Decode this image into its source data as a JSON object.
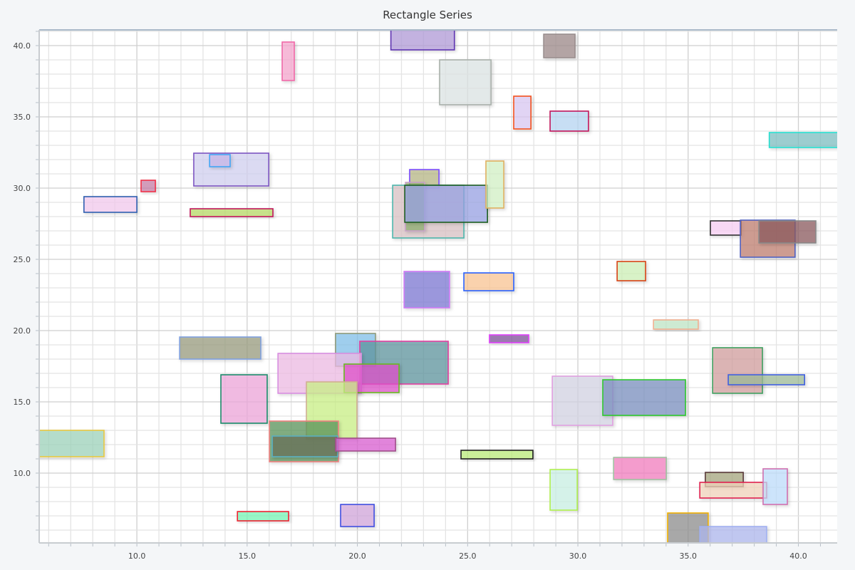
{
  "chart_data": {
    "type": "rectangle",
    "title": "Rectangle Series",
    "xlabel": "",
    "ylabel": "",
    "xlim": [
      5.57,
      41.76
    ],
    "ylim": [
      5.1,
      41.1
    ],
    "grid": true,
    "x_ticks": [
      "10.0",
      "15.0",
      "20.0",
      "25.0",
      "30.0",
      "35.0",
      "40.0"
    ],
    "y_ticks": [
      "10.0",
      "15.0",
      "20.0",
      "25.0",
      "30.0",
      "35.0",
      "40.0"
    ],
    "rectangles": [
      {
        "x1": 21.52,
        "x2": 24.4,
        "y1": 39.7,
        "y2": 41.3,
        "fill": "#b39ddb",
        "stroke": "#5e35b1"
      },
      {
        "x1": 16.59,
        "x2": 17.14,
        "y1": 37.55,
        "y2": 40.25,
        "fill": "#f8a8d0",
        "stroke": "#f06aa8"
      },
      {
        "x1": 23.73,
        "x2": 26.06,
        "y1": 35.85,
        "y2": 39.0,
        "fill": "#dfe6e6",
        "stroke": "#a8b0aa"
      },
      {
        "x1": 28.45,
        "x2": 29.87,
        "y1": 39.15,
        "y2": 40.8,
        "fill": "#9e8a8a",
        "stroke": "#9a8e8e"
      },
      {
        "x1": 27.09,
        "x2": 27.87,
        "y1": 34.15,
        "y2": 36.45,
        "fill": "#dccaf5",
        "stroke": "#f4511e"
      },
      {
        "x1": 28.74,
        "x2": 30.48,
        "y1": 34.0,
        "y2": 35.4,
        "fill": "#b8d8f5",
        "stroke": "#c2185b"
      },
      {
        "x1": 38.68,
        "x2": 42.0,
        "y1": 32.85,
        "y2": 33.9,
        "fill": "#80c0c4",
        "stroke": "#26e0d0"
      },
      {
        "x1": 12.58,
        "x2": 15.98,
        "y1": 30.15,
        "y2": 32.45,
        "fill": "#d4d2f2",
        "stroke": "#7e57c2"
      },
      {
        "x1": 13.3,
        "x2": 14.23,
        "y1": 31.5,
        "y2": 32.35,
        "fill": "#cab8ea",
        "stroke": "#42a5f5"
      },
      {
        "x1": 10.19,
        "x2": 10.84,
        "y1": 29.75,
        "y2": 30.55,
        "fill": "#c880a8",
        "stroke": "#f0304a"
      },
      {
        "x1": 7.6,
        "x2": 10.0,
        "y1": 28.3,
        "y2": 29.4,
        "fill": "#f5ccf0",
        "stroke": "#2f5fb0"
      },
      {
        "x1": 12.42,
        "x2": 16.17,
        "y1": 28.0,
        "y2": 28.55,
        "fill": "#b8dc68",
        "stroke": "#c2185b"
      },
      {
        "x1": 22.37,
        "x2": 23.7,
        "y1": 30.0,
        "y2": 31.3,
        "fill": "#b8b888",
        "stroke": "#7c4dff"
      },
      {
        "x1": 21.6,
        "x2": 24.83,
        "y1": 26.5,
        "y2": 30.2,
        "fill": "#dcc4c6",
        "stroke": "#4db6ac"
      },
      {
        "x1": 22.18,
        "x2": 23.05,
        "y1": 27.0,
        "y2": 30.4,
        "fill": "#90b070",
        "stroke": "#c8a2c8"
      },
      {
        "x1": 22.15,
        "x2": 25.9,
        "y1": 27.6,
        "y2": 30.2,
        "fill": "#9aa4e6",
        "stroke": "#1b5e20"
      },
      {
        "x1": 25.83,
        "x2": 26.64,
        "y1": 28.6,
        "y2": 31.9,
        "fill": "#d6f4c8",
        "stroke": "#e0b060"
      },
      {
        "x1": 22.12,
        "x2": 24.18,
        "y1": 21.6,
        "y2": 24.15,
        "fill": "#7e79d5",
        "stroke": "#d07af5"
      },
      {
        "x1": 24.83,
        "x2": 27.09,
        "y1": 22.8,
        "y2": 24.05,
        "fill": "#fdc896",
        "stroke": "#2962ff"
      },
      {
        "x1": 31.78,
        "x2": 33.07,
        "y1": 23.5,
        "y2": 24.85,
        "fill": "#d0f2b8",
        "stroke": "#d84315"
      },
      {
        "x1": 36.01,
        "x2": 37.4,
        "y1": 26.7,
        "y2": 27.7,
        "fill": "#fbd0f5",
        "stroke": "#333333"
      },
      {
        "x1": 37.37,
        "x2": 39.85,
        "y1": 25.15,
        "y2": 27.75,
        "fill": "#c08070",
        "stroke": "#5060c0"
      },
      {
        "x1": 38.21,
        "x2": 40.79,
        "y1": 26.15,
        "y2": 27.7,
        "fill": "#8e5a60",
        "stroke": "#888888"
      },
      {
        "x1": 33.43,
        "x2": 35.46,
        "y1": 20.1,
        "y2": 20.75,
        "fill": "#c0e8c8",
        "stroke": "#f0b090"
      },
      {
        "x1": 25.99,
        "x2": 27.77,
        "y1": 19.15,
        "y2": 19.7,
        "fill": "#80509a",
        "stroke": "#e040fb"
      },
      {
        "x1": 11.94,
        "x2": 15.62,
        "y1": 18.0,
        "y2": 19.55,
        "fill": "#9a9c80",
        "stroke": "#7fa0e0"
      },
      {
        "x1": 19.01,
        "x2": 20.82,
        "y1": 17.5,
        "y2": 19.8,
        "fill": "#84c2ec",
        "stroke": "#8d9a7a"
      },
      {
        "x1": 20.11,
        "x2": 24.12,
        "y1": 16.25,
        "y2": 19.25,
        "fill": "#5e96a0",
        "stroke": "#e040a0"
      },
      {
        "x1": 16.4,
        "x2": 20.18,
        "y1": 15.6,
        "y2": 18.4,
        "fill": "#f0bce6",
        "stroke": "#d88ee0"
      },
      {
        "x1": 19.4,
        "x2": 21.89,
        "y1": 15.65,
        "y2": 17.65,
        "fill": "#e050cc",
        "stroke": "#6ab820"
      },
      {
        "x1": 13.81,
        "x2": 15.91,
        "y1": 13.5,
        "y2": 16.9,
        "fill": "#f0a8dc",
        "stroke": "#1a8a6a"
      },
      {
        "x1": 17.69,
        "x2": 19.98,
        "y1": 12.4,
        "y2": 16.4,
        "fill": "#ccf288",
        "stroke": "#d0b090"
      },
      {
        "x1": 16.01,
        "x2": 19.14,
        "y1": 10.8,
        "y2": 13.65,
        "fill": "#5a945a",
        "stroke": "#f08080"
      },
      {
        "x1": 16.14,
        "x2": 19.11,
        "y1": 11.15,
        "y2": 12.6,
        "fill": "#6a7058",
        "stroke": "#5ab0c0"
      },
      {
        "x1": 19.01,
        "x2": 21.73,
        "y1": 11.55,
        "y2": 12.45,
        "fill": "#dc60d4",
        "stroke": "#a0508a"
      },
      {
        "x1": 5.4,
        "x2": 8.51,
        "y1": 11.15,
        "y2": 13.0,
        "fill": "#a0d6bc",
        "stroke": "#e8c840"
      },
      {
        "x1": 24.7,
        "x2": 27.96,
        "y1": 11.0,
        "y2": 11.6,
        "fill": "#bcee7a",
        "stroke": "#222222"
      },
      {
        "x1": 28.84,
        "x2": 31.58,
        "y1": 13.35,
        "y2": 16.8,
        "fill": "#d6d6e4",
        "stroke": "#e0a0e0"
      },
      {
        "x1": 31.13,
        "x2": 34.88,
        "y1": 14.05,
        "y2": 16.55,
        "fill": "#7a92c0",
        "stroke": "#2ec82e"
      },
      {
        "x1": 36.11,
        "x2": 38.37,
        "y1": 15.6,
        "y2": 18.8,
        "fill": "#d4a0a0",
        "stroke": "#40a060"
      },
      {
        "x1": 36.82,
        "x2": 40.28,
        "y1": 16.2,
        "y2": 16.9,
        "fill": "#a0bc98",
        "stroke": "#4060e0"
      },
      {
        "x1": 31.62,
        "x2": 34.01,
        "y1": 9.55,
        "y2": 11.1,
        "fill": "#f580c0",
        "stroke": "#a0c0a0"
      },
      {
        "x1": 28.74,
        "x2": 29.97,
        "y1": 7.4,
        "y2": 10.25,
        "fill": "#ccf2e6",
        "stroke": "#b0f050"
      },
      {
        "x1": 35.78,
        "x2": 37.5,
        "y1": 9.05,
        "y2": 10.05,
        "fill": "#a8a880",
        "stroke": "#5a3a3a"
      },
      {
        "x1": 35.53,
        "x2": 38.56,
        "y1": 8.25,
        "y2": 9.35,
        "fill": "#f4d6bc",
        "stroke": "#e02050"
      },
      {
        "x1": 38.4,
        "x2": 39.5,
        "y1": 7.8,
        "y2": 10.3,
        "fill": "#c0e0ff",
        "stroke": "#d070b0"
      },
      {
        "x1": 34.07,
        "x2": 35.91,
        "y1": 5.0,
        "y2": 7.2,
        "fill": "#909090",
        "stroke": "#f0b000"
      },
      {
        "x1": 35.53,
        "x2": 38.56,
        "y1": 5.0,
        "y2": 6.25,
        "fill": "#b0b8f0",
        "stroke": "#a0b0f0"
      },
      {
        "x1": 14.56,
        "x2": 16.88,
        "y1": 6.65,
        "y2": 7.3,
        "fill": "#78f8b8",
        "stroke": "#f02030"
      },
      {
        "x1": 19.24,
        "x2": 20.76,
        "y1": 6.25,
        "y2": 7.8,
        "fill": "#d4a8de",
        "stroke": "#4050e0"
      }
    ]
  }
}
